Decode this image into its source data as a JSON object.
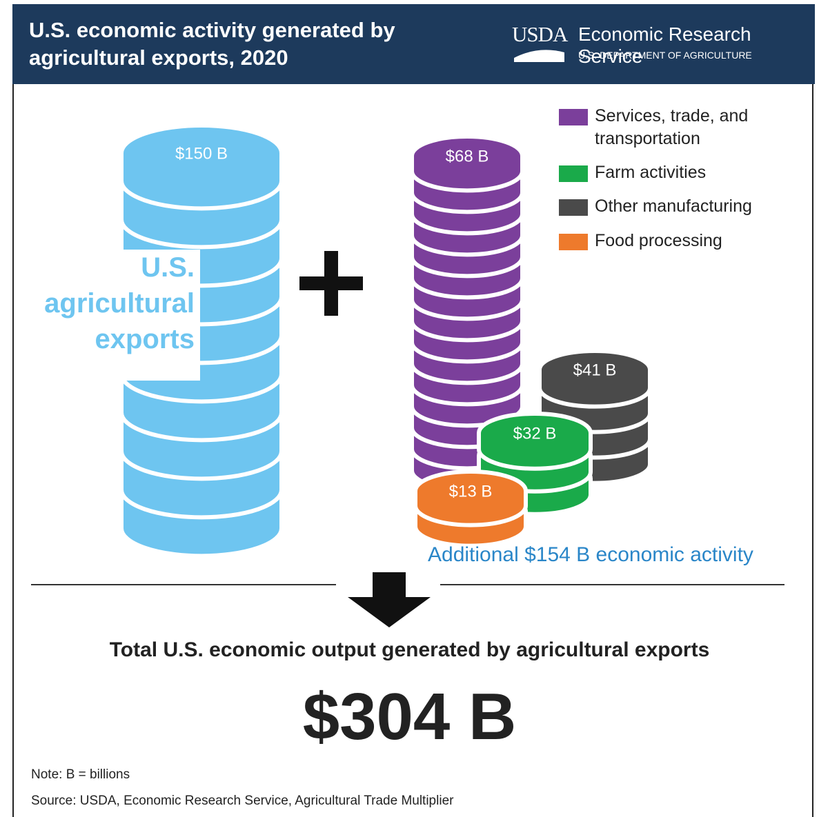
{
  "header": {
    "title": "U.S. economic activity generated by agricultural exports, 2020",
    "logo": "USDA",
    "agency": "Economic Research Service",
    "department": "U.S. DEPARTMENT OF AGRICULTURE",
    "color": "#1d3a5c"
  },
  "exports": {
    "label": "U.S. agricultural exports",
    "value": "$150 B",
    "color": "#6ec5f0"
  },
  "stacks": [
    {
      "name": "Services, trade, and transportation",
      "value": "$68 B",
      "color": "#7b3f9b"
    },
    {
      "name": "Other manufacturing",
      "value": "$41 B",
      "color": "#4a4a4a"
    },
    {
      "name": "Farm activities",
      "value": "$32 B",
      "color": "#1aaa4a"
    },
    {
      "name": "Food processing",
      "value": "$13 B",
      "color": "#ee7a2c"
    }
  ],
  "legend": [
    {
      "label": "Services, trade, and transportation",
      "color": "#7b3f9b"
    },
    {
      "label": "Farm activities",
      "color": "#1aaa4a"
    },
    {
      "label": "Other manufacturing",
      "color": "#4a4a4a"
    },
    {
      "label": "Food processing",
      "color": "#ee7a2c"
    }
  ],
  "additional": "Additional $154 B economic activity",
  "total": {
    "label": "Total U.S. economic output generated by agricultural exports",
    "value": "$304 B"
  },
  "note": "Note: B = billions",
  "source": "Source: USDA, Economic Research Service, Agricultural Trade Multiplier"
}
